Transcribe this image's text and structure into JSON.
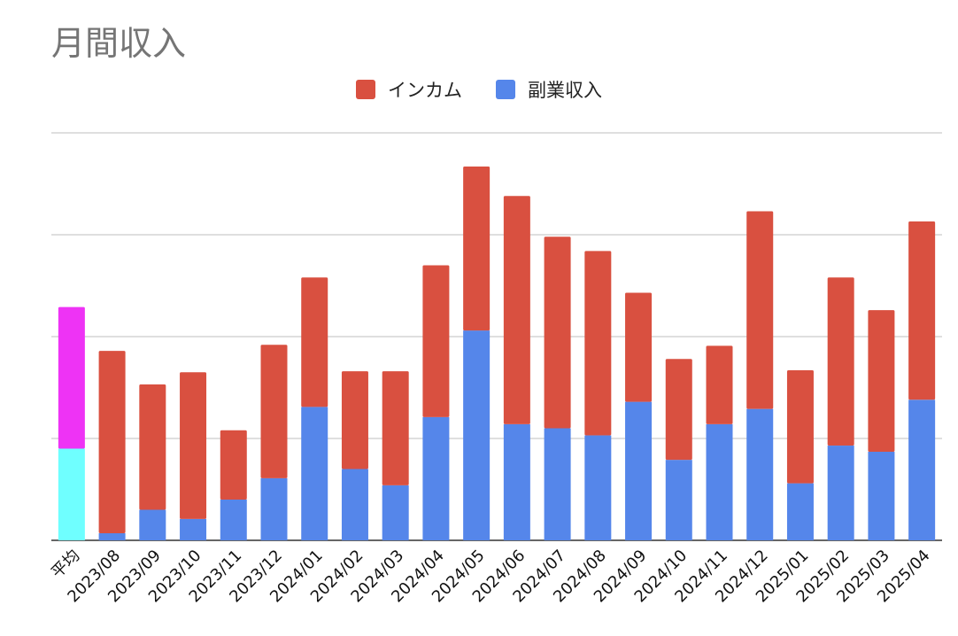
{
  "chart_data": {
    "type": "bar",
    "stacked": true,
    "title": "月間収入",
    "xlabel": "",
    "ylabel": "",
    "ylim": [
      0,
      4
    ],
    "grid": true,
    "legend_position": "top",
    "categories": [
      "平均",
      "2023/08",
      "2023/09",
      "2023/10",
      "2023/11",
      "2023/12",
      "2024/01",
      "2024/02",
      "2024/03",
      "2024/04",
      "2024/05",
      "2024/06",
      "2024/07",
      "2024/08",
      "2024/09",
      "2024/10",
      "2024/11",
      "2024/12",
      "2025/01",
      "2025/02",
      "2025/03",
      "2025/04"
    ],
    "series": [
      {
        "name": "副業収入",
        "color": "#5586EA",
        "values": [
          0.9,
          0.07,
          0.3,
          0.21,
          0.4,
          0.61,
          1.31,
          0.7,
          0.54,
          1.21,
          2.06,
          1.14,
          1.1,
          1.03,
          1.36,
          0.79,
          1.14,
          1.29,
          0.56,
          0.93,
          0.87,
          1.38
        ]
      },
      {
        "name": "インカム",
        "color": "#D95040",
        "values": [
          1.39,
          1.79,
          1.23,
          1.44,
          0.68,
          1.31,
          1.27,
          0.96,
          1.12,
          1.49,
          1.61,
          2.24,
          1.88,
          1.81,
          1.07,
          0.99,
          0.77,
          1.94,
          1.11,
          1.65,
          1.39,
          1.75
        ]
      }
    ],
    "average_bar_colors": {
      "副業収入": "#6FFFFF",
      "インカム": "#EE33F5"
    }
  }
}
